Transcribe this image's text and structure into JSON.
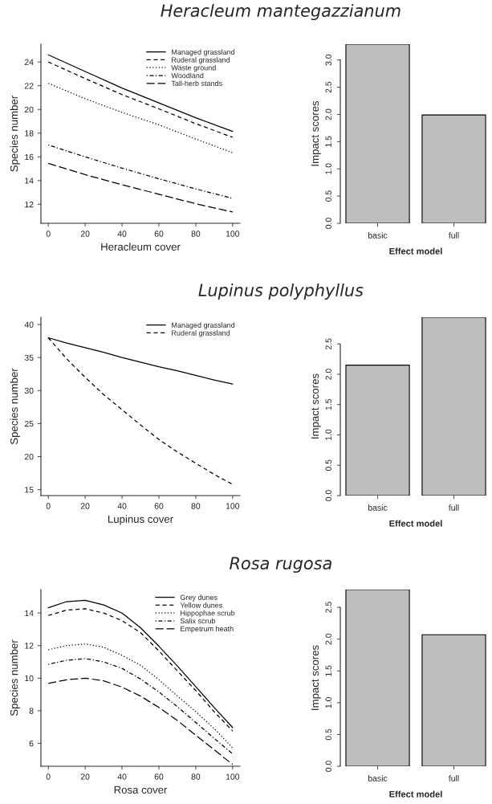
{
  "chart_data": [
    {
      "type": "line",
      "title": "Heracleum mantegazzianum",
      "xlabel": "Heracleum cover",
      "ylabel": "Species number",
      "x": [
        0,
        20,
        40,
        60,
        80,
        100
      ],
      "xlim": [
        -4,
        104
      ],
      "ylim": [
        10.4,
        25.5
      ],
      "xticks": [
        0,
        20,
        40,
        60,
        80,
        100
      ],
      "yticks": [
        12,
        14,
        16,
        18,
        20,
        22,
        24
      ],
      "legend": "top right",
      "grid": false,
      "series": [
        {
          "name": "Managed grassland",
          "color": "#000000",
          "line_style": "solid",
          "values": [
            24.6,
            23.2,
            21.8,
            20.55,
            19.3,
            18.15
          ]
        },
        {
          "name": "Ruderal grassland",
          "color": "#000000",
          "line_style": "dashed",
          "values": [
            24.0,
            22.6,
            21.25,
            20.05,
            18.8,
            17.65
          ]
        },
        {
          "name": "Waste ground",
          "color": "#000000",
          "line_style": "dotted",
          "values": [
            22.2,
            20.9,
            19.75,
            18.7,
            17.5,
            16.35
          ]
        },
        {
          "name": "Woodland",
          "color": "#000000",
          "line_style": "dashdot",
          "values": [
            17.0,
            16.0,
            15.05,
            14.15,
            13.3,
            12.5
          ]
        },
        {
          "name": "Tall-herb stands",
          "color": "#000000",
          "line_style": "longdash",
          "values": [
            15.45,
            14.5,
            13.65,
            12.85,
            12.05,
            11.35
          ]
        }
      ]
    },
    {
      "type": "bar",
      "xlabel": "Effect model",
      "ylabel": "Impact scores",
      "categories": [
        "basic",
        "full"
      ],
      "values": [
        3.29,
        1.99
      ],
      "color": "#bebebe",
      "ylim": [
        0,
        3.29
      ],
      "yticks": [
        {
          "value": 0,
          "label": "0.0"
        },
        0.5,
        {
          "value": 1,
          "label": "1.0"
        },
        1.5,
        {
          "value": 2,
          "label": "2.0"
        },
        2.5,
        {
          "value": 3,
          "label": "3.0"
        }
      ],
      "grid": false
    },
    {
      "type": "line",
      "title": "Lupinus polyphyllus",
      "xlabel": "Lupinus cover",
      "ylabel": "Species number",
      "x": [
        0,
        10,
        20,
        30,
        40,
        50,
        60,
        70,
        80,
        90,
        100
      ],
      "xlim": [
        -4,
        104
      ],
      "ylim": [
        14.1,
        41.1
      ],
      "xticks": [
        0,
        20,
        40,
        60,
        80,
        100
      ],
      "yticks": [
        15,
        20,
        25,
        30,
        35,
        40
      ],
      "legend": "top right",
      "grid": false,
      "series": [
        {
          "name": "Managed grassland",
          "color": "#000000",
          "line_style": "solid",
          "values": [
            38.0,
            37.2,
            36.5,
            35.8,
            35.0,
            34.3,
            33.6,
            33.0,
            32.3,
            31.6,
            31.0
          ]
        },
        {
          "name": "Ruderal grassland",
          "color": "#000000",
          "line_style": "dashed",
          "values": [
            38.0,
            34.8,
            32.0,
            29.4,
            27.1,
            24.8,
            22.6,
            20.7,
            19.0,
            17.3,
            15.8
          ]
        }
      ]
    },
    {
      "type": "bar",
      "xlabel": "Effect model",
      "ylabel": "Impact scores",
      "categories": [
        "basic",
        "full"
      ],
      "values": [
        2.15,
        2.94
      ],
      "color": "#bebebe",
      "ylim": [
        0,
        2.94
      ],
      "yticks": [
        {
          "value": 0,
          "label": "0.0"
        },
        0.5,
        {
          "value": 1,
          "label": "1.0"
        },
        1.5,
        {
          "value": 2,
          "label": "2.0"
        },
        2.5
      ],
      "grid": false
    },
    {
      "type": "line",
      "title": "Rosa rugosa",
      "xlabel": "Rosa cover",
      "ylabel": "Species number",
      "x": [
        0,
        10,
        20,
        30,
        40,
        50,
        60,
        70,
        80,
        90,
        100
      ],
      "xlim": [
        -4,
        104
      ],
      "ylim": [
        4.59,
        15.44
      ],
      "xticks": [
        0,
        20,
        40,
        60,
        80,
        100
      ],
      "yticks": [
        6,
        8,
        10,
        12,
        14
      ],
      "legend": "top right",
      "grid": false,
      "series": [
        {
          "name": "Grey dunes",
          "color": "#000000",
          "line_style": "solid",
          "values": [
            14.32,
            14.7,
            14.78,
            14.5,
            14.0,
            13.1,
            11.96,
            10.75,
            9.48,
            8.2,
            6.97
          ]
        },
        {
          "name": "Yellow dunes",
          "color": "#000000",
          "line_style": "dashed",
          "values": [
            13.85,
            14.18,
            14.26,
            14.0,
            13.53,
            12.8,
            11.67,
            10.45,
            9.24,
            7.94,
            6.76
          ]
        },
        {
          "name": "Hippophae scrub",
          "color": "#000000",
          "line_style": "dotted",
          "values": [
            11.75,
            12.0,
            12.1,
            11.9,
            11.4,
            10.8,
            9.9,
            8.9,
            7.95,
            6.9,
            5.72
          ]
        },
        {
          "name": "Salix scrub",
          "color": "#000000",
          "line_style": "dashdot",
          "values": [
            10.85,
            11.1,
            11.2,
            11.0,
            10.6,
            9.95,
            9.15,
            8.25,
            7.28,
            6.3,
            5.35
          ]
        },
        {
          "name": "Empetrum heath",
          "color": "#000000",
          "line_style": "longdash",
          "values": [
            9.68,
            9.9,
            10.0,
            9.84,
            9.45,
            8.9,
            8.2,
            7.4,
            6.5,
            5.6,
            4.7
          ]
        }
      ]
    },
    {
      "type": "bar",
      "xlabel": "Effect model",
      "ylabel": "Impact scores",
      "categories": [
        "basic",
        "full"
      ],
      "values": [
        2.78,
        2.07
      ],
      "color": "#bebebe",
      "ylim": [
        0,
        2.78
      ],
      "yticks": [
        {
          "value": 0,
          "label": "0.0"
        },
        0.5,
        {
          "value": 1,
          "label": "1.0"
        },
        1.5,
        {
          "value": 2,
          "label": "2.0"
        },
        2.5
      ],
      "grid": false
    }
  ]
}
